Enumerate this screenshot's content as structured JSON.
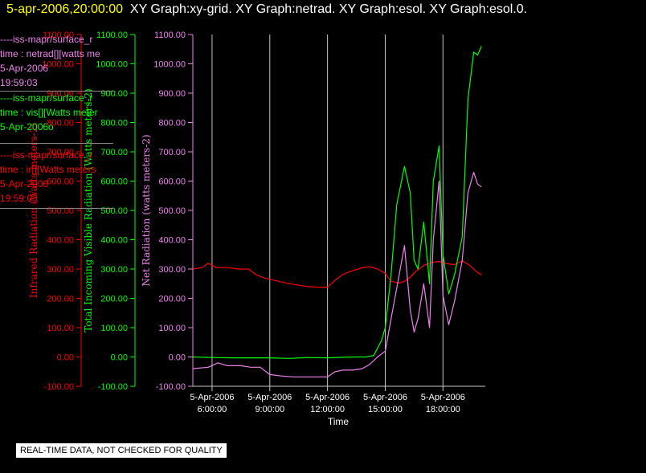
{
  "header": {
    "timestamp": "5-apr-2006,20:00:00",
    "graphs": "XY Graph:xy-grid.  XY Graph:netrad.  XY Graph:esol.  XY Graph:esol.0."
  },
  "notice": "REAL-TIME DATA, NOT CHECKED FOR QUALITY",
  "legend": [
    {
      "lines": [
        "----iss-mapr/surface_r",
        "time : netrad[][watts me",
        "5-Apr-2006",
        "19:59:03"
      ],
      "color": "#ee82ee"
    },
    {
      "lines": [
        "----iss-mapr/surface_r",
        "time : vis[][Watts meter",
        "5-Apr-2006o"
      ],
      "color": "#00ff00"
    },
    {
      "lines": [
        "----iss-mapr/surface_r",
        "time : ir[][Watts meters",
        "5-Apr-2006",
        "19:59:03"
      ],
      "color": "#ff0000"
    }
  ],
  "chart_data": {
    "type": "line",
    "xlabel": "Time",
    "x_ticks": [
      {
        "date": "5-Apr-2006",
        "time": "6:00:00",
        "hour": 6
      },
      {
        "date": "5-Apr-2006",
        "time": "9:00:00",
        "hour": 9
      },
      {
        "date": "5-Apr-2006",
        "time": "12:00:00",
        "hour": 12
      },
      {
        "date": "5-Apr-2006",
        "time": "15:00:00",
        "hour": 15
      },
      {
        "date": "5-Apr-2006",
        "time": "18:00:00",
        "hour": 18
      }
    ],
    "xlim": [
      5,
      20.2
    ],
    "ylim": [
      -100,
      1100
    ],
    "y_ticks": [
      "-100.00",
      "0.00",
      "100.00",
      "200.00",
      "300.00",
      "400.00",
      "500.00",
      "600.00",
      "700.00",
      "800.00",
      "900.00",
      "1000.00",
      "1100.00"
    ],
    "axes": [
      {
        "label": "Infrared Radiation (Watts meters-2)",
        "color": "#ff0000"
      },
      {
        "label": "Total Incoming Visible Radiation (Watts meters-2)",
        "color": "#00ff00"
      },
      {
        "label": "Net Radiation (watts meters-2)",
        "color": "#ee82ee"
      }
    ],
    "series": [
      {
        "color": "#ff0000",
        "x": [
          5.0,
          5.5,
          5.8,
          6.2,
          6.8,
          7.4,
          7.9,
          8.3,
          8.7,
          9.2,
          9.8,
          10.4,
          11.0,
          11.5,
          12.0,
          12.4,
          12.8,
          13.3,
          13.8,
          14.2,
          14.6,
          15.0,
          15.3,
          15.7,
          16.0,
          16.3,
          16.6,
          17.0,
          17.4,
          17.8,
          18.2,
          18.6,
          19.0,
          19.4,
          19.8,
          20.0
        ],
        "y": [
          300,
          305,
          320,
          305,
          305,
          300,
          300,
          280,
          270,
          262,
          253,
          246,
          240,
          238,
          238,
          262,
          282,
          294,
          304,
          308,
          300,
          285,
          258,
          252,
          258,
          272,
          293,
          312,
          322,
          326,
          318,
          315,
          328,
          312,
          288,
          280
        ]
      },
      {
        "color": "#00ff00",
        "x": [
          5.0,
          6.0,
          7.0,
          8.0,
          9.0,
          10.0,
          11.0,
          12.0,
          12.8,
          13.5,
          14.0,
          14.4,
          14.8,
          15.0,
          15.3,
          15.6,
          16.0,
          16.3,
          16.5,
          16.7,
          17.0,
          17.3,
          17.5,
          17.8,
          18.0,
          18.3,
          18.6,
          19.0,
          19.3,
          19.6,
          19.8,
          20.0
        ],
        "y": [
          0,
          -2,
          -3,
          -3,
          -3,
          -5,
          -2,
          -3,
          -1,
          0,
          0,
          5,
          55,
          100,
          280,
          520,
          650,
          560,
          330,
          300,
          460,
          250,
          600,
          720,
          350,
          215,
          280,
          410,
          880,
          1040,
          1030,
          1060
        ]
      },
      {
        "color": "#ee82ee",
        "x": [
          5.0,
          5.8,
          6.3,
          6.8,
          7.5,
          8.0,
          8.5,
          9.0,
          9.6,
          10.2,
          10.8,
          11.4,
          12.0,
          12.4,
          12.8,
          13.3,
          13.8,
          14.2,
          14.6,
          15.0,
          15.3,
          15.6,
          16.0,
          16.3,
          16.5,
          16.7,
          17.0,
          17.3,
          17.5,
          17.8,
          18.0,
          18.3,
          18.6,
          19.0,
          19.3,
          19.6,
          19.8,
          20.0
        ],
        "y": [
          -40,
          -35,
          -20,
          -30,
          -30,
          -35,
          -35,
          -60,
          -65,
          -68,
          -68,
          -68,
          -68,
          -50,
          -45,
          -45,
          -40,
          -25,
          0,
          20,
          130,
          235,
          380,
          160,
          85,
          130,
          250,
          100,
          400,
          600,
          210,
          110,
          190,
          330,
          560,
          630,
          590,
          580
        ]
      }
    ]
  }
}
